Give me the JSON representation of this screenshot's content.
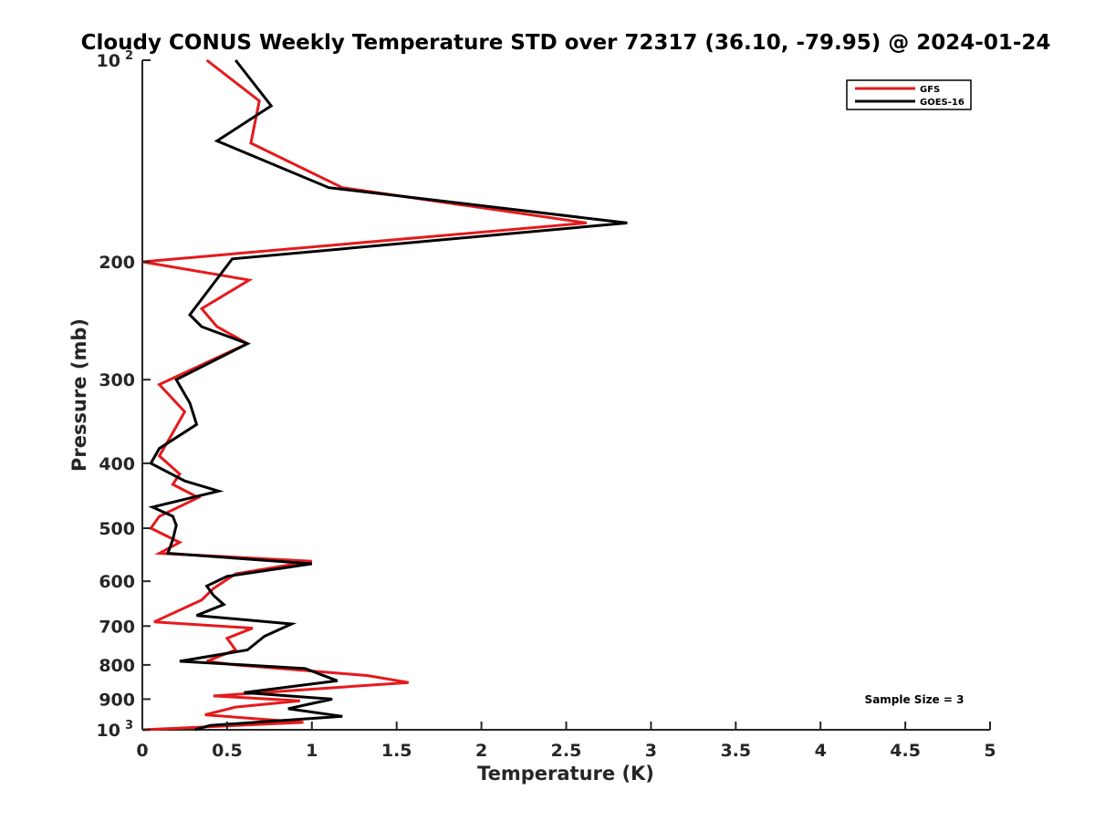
{
  "chart_data": {
    "type": "line",
    "title": "Cloudy CONUS Weekly Temperature STD over 72317 (36.10, -79.95) @ 2024-01-24",
    "xlabel": "Temperature (K)",
    "ylabel": "Pressure (mb)",
    "xlim": [
      0,
      5
    ],
    "ylim": [
      100,
      1000
    ],
    "y_scale": "log",
    "y_reversed": true,
    "x_ticks": [
      "0",
      "0.5",
      "1",
      "1.5",
      "2",
      "2.5",
      "3",
      "3.5",
      "4",
      "4.5",
      "5"
    ],
    "y_ticks": [
      {
        "value": 100,
        "base": "10",
        "exp": "2"
      },
      {
        "value": 200,
        "label": "200"
      },
      {
        "value": 300,
        "label": "300"
      },
      {
        "value": 400,
        "label": "400"
      },
      {
        "value": 500,
        "label": "500"
      },
      {
        "value": 600,
        "label": "600"
      },
      {
        "value": 700,
        "label": "700"
      },
      {
        "value": 800,
        "label": "800"
      },
      {
        "value": 900,
        "label": "900"
      },
      {
        "value": 1000,
        "base": "10",
        "exp": "3"
      }
    ],
    "grid": false,
    "legend_position": "top-right",
    "annotation": "Sample Size = 3",
    "series": [
      {
        "name": "GFS",
        "color": "#e41a1c",
        "points": [
          [
            0.38,
            100
          ],
          [
            0.69,
            115
          ],
          [
            0.64,
            133
          ],
          [
            1.18,
            155
          ],
          [
            2.62,
            175
          ],
          [
            0,
            200
          ],
          [
            0.63,
            213
          ],
          [
            0.35,
            235
          ],
          [
            0.44,
            250
          ],
          [
            0.62,
            265
          ],
          [
            0.1,
            305
          ],
          [
            0.25,
            335
          ],
          [
            0.18,
            360
          ],
          [
            0.1,
            390
          ],
          [
            0.22,
            415
          ],
          [
            0.18,
            430
          ],
          [
            0.33,
            450
          ],
          [
            0.1,
            480
          ],
          [
            0.05,
            500
          ],
          [
            0.22,
            525
          ],
          [
            0.1,
            545
          ],
          [
            1.0,
            560
          ],
          [
            0.55,
            585
          ],
          [
            0.42,
            615
          ],
          [
            0.35,
            640
          ],
          [
            0.07,
            690
          ],
          [
            0.65,
            705
          ],
          [
            0.5,
            730
          ],
          [
            0.55,
            760
          ],
          [
            0.38,
            790
          ],
          [
            0.55,
            800
          ],
          [
            1.33,
            830
          ],
          [
            1.57,
            850
          ],
          [
            0.42,
            890
          ],
          [
            0.93,
            905
          ],
          [
            0.55,
            925
          ],
          [
            0.37,
            950
          ],
          [
            0.95,
            975
          ],
          [
            0.0,
            1000
          ]
        ]
      },
      {
        "name": "GOES-16",
        "color": "#000000",
        "points": [
          [
            0.55,
            100
          ],
          [
            0.76,
            117
          ],
          [
            0.44,
            132
          ],
          [
            1.1,
            155
          ],
          [
            2.86,
            175
          ],
          [
            0.53,
            198
          ],
          [
            0.28,
            240
          ],
          [
            0.35,
            250
          ],
          [
            0.62,
            265
          ],
          [
            0.2,
            300
          ],
          [
            0.28,
            325
          ],
          [
            0.32,
            350
          ],
          [
            0.1,
            380
          ],
          [
            0.05,
            400
          ],
          [
            0.25,
            425
          ],
          [
            0.45,
            440
          ],
          [
            0.06,
            465
          ],
          [
            0.18,
            480
          ],
          [
            0.2,
            495
          ],
          [
            0.18,
            520
          ],
          [
            0.15,
            545
          ],
          [
            1.0,
            565
          ],
          [
            0.5,
            590
          ],
          [
            0.38,
            610
          ],
          [
            0.42,
            630
          ],
          [
            0.48,
            650
          ],
          [
            0.32,
            675
          ],
          [
            0.88,
            695
          ],
          [
            0.72,
            725
          ],
          [
            0.62,
            760
          ],
          [
            0.22,
            790
          ],
          [
            0.96,
            810
          ],
          [
            1.15,
            845
          ],
          [
            0.6,
            880
          ],
          [
            1.12,
            900
          ],
          [
            0.86,
            930
          ],
          [
            1.18,
            955
          ],
          [
            0.4,
            985
          ],
          [
            0.31,
            1000
          ]
        ]
      }
    ]
  }
}
